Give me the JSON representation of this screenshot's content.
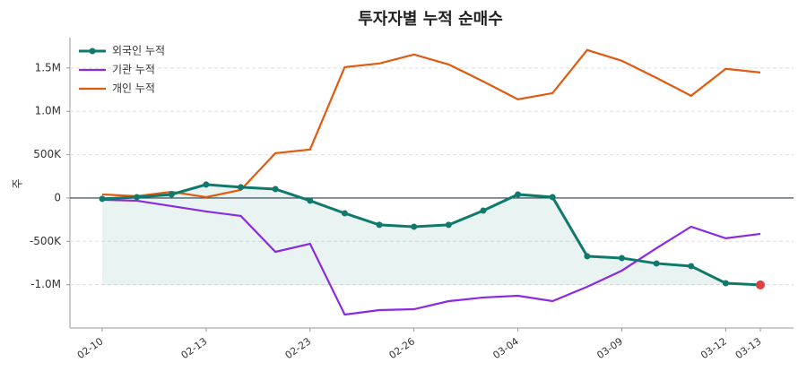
{
  "chart_data": {
    "type": "line",
    "title": "투자자별 누적 순매수",
    "y_label": "주",
    "categories": [
      "02-10",
      null,
      null,
      "02-13",
      null,
      null,
      "02-23",
      null,
      null,
      "02-26",
      null,
      null,
      "03-04",
      null,
      null,
      "03-09",
      null,
      null,
      "03-12",
      "03-13"
    ],
    "series": [
      {
        "name": "외국인 누적",
        "color": "#0f7a6c",
        "values": [
          -10000,
          10000,
          41000,
          155000,
          124000,
          103000,
          -31000,
          -176000,
          -310000,
          -331000,
          -310000,
          -145000,
          41000,
          10000,
          -672000,
          -693000,
          -755000,
          -786000,
          -983000,
          -1003000
        ]
      },
      {
        "name": "기관 누적",
        "color": "#8a2be2",
        "values": [
          -21000,
          -31000,
          -93000,
          -155000,
          -207000,
          -621000,
          -528000,
          -1345000,
          -1293000,
          -1283000,
          -1190000,
          -1148000,
          -1128000,
          -1190000,
          -1024000,
          -838000,
          -579000,
          -331000,
          -465000,
          -414000
        ]
      },
      {
        "name": "개인 누적",
        "color": "#e05a10",
        "values": [
          41000,
          21000,
          72000,
          10000,
          93000,
          517000,
          559000,
          1510000,
          1552000,
          1655000,
          1541000,
          1345000,
          1138000,
          1210000,
          1707000,
          1583000,
          1386000,
          1179000,
          1490000,
          1448000
        ]
      }
    ],
    "ylim": [
      -1500000,
      1850000
    ],
    "yticks": [
      {
        "value": -1000000,
        "label": "-1.0M"
      },
      {
        "value": -500000,
        "label": "-500K"
      },
      0,
      {
        "value": 500000,
        "label": "500K"
      },
      {
        "value": 1000000,
        "label": "1.0M"
      },
      {
        "value": 1500000,
        "label": "1.5M"
      }
    ],
    "grid": true,
    "legend": "upper-left",
    "highlight_color": "#e04040"
  }
}
